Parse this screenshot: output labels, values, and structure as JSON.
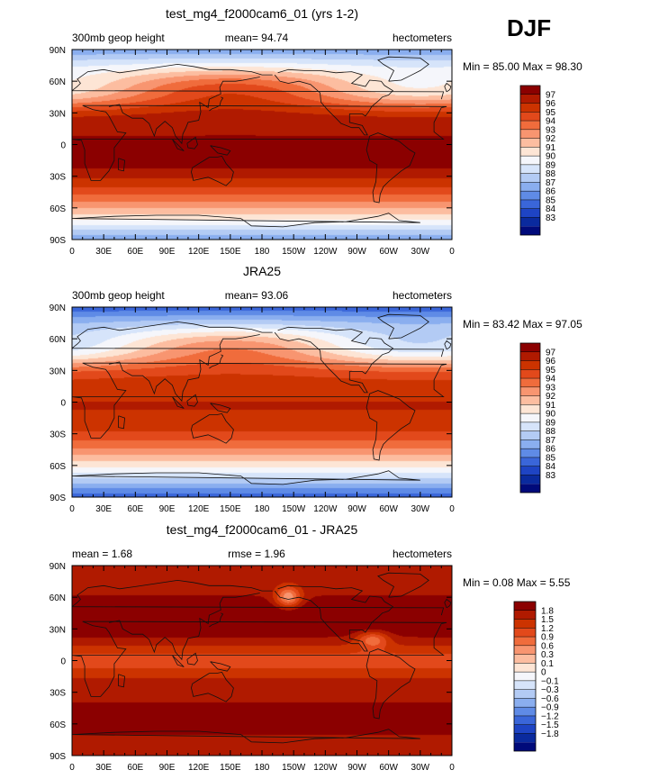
{
  "season": "DJF",
  "chart_data": [
    {
      "type": "heatmap",
      "title": "test_mg4_f2000cam6_01 (yrs 1-2)",
      "left_label": "300mb geop height",
      "center_label": "mean=   94.74",
      "right_label": "hectometers",
      "minmax_label": "Min =   85.00  Max =   98.30",
      "min": 85.0,
      "max": 98.3,
      "x_ticks": [
        "0",
        "30E",
        "60E",
        "90E",
        "120E",
        "150E",
        "180",
        "150W",
        "120W",
        "90W",
        "60W",
        "30W",
        "0"
      ],
      "y_ticks": [
        "90N",
        "60N",
        "30N",
        "0",
        "30S",
        "60S",
        "90S"
      ],
      "colorbar_levels": [
        "97",
        "96",
        "95",
        "94",
        "93",
        "92",
        "91",
        "90",
        "89",
        "88",
        "87",
        "86",
        "85",
        "84",
        "83"
      ],
      "colorbar_colors": [
        "#8b0000",
        "#b01a00",
        "#cc3300",
        "#e2491b",
        "#f06c3c",
        "#f89570",
        "#fcbda0",
        "#fde5d5",
        "#f5f6fb",
        "#d6e4fa",
        "#b3cbf4",
        "#8aaeef",
        "#5f8be6",
        "#3a66d9",
        "#1e44c4",
        "#0a2a9e",
        "#000a7a"
      ]
    },
    {
      "type": "heatmap",
      "title": "JRA25",
      "left_label": "300mb geop height",
      "center_label": "mean=   93.06",
      "right_label": "hectometers",
      "minmax_label": "Min =   83.42  Max =   97.05",
      "min": 83.42,
      "max": 97.05,
      "x_ticks": [
        "0",
        "30E",
        "60E",
        "90E",
        "120E",
        "150E",
        "180",
        "150W",
        "120W",
        "90W",
        "60W",
        "30W",
        "0"
      ],
      "y_ticks": [
        "90N",
        "60N",
        "30N",
        "0",
        "30S",
        "60S",
        "90S"
      ],
      "colorbar_levels": [
        "97",
        "96",
        "95",
        "94",
        "93",
        "92",
        "91",
        "90",
        "89",
        "88",
        "87",
        "86",
        "85",
        "84",
        "83"
      ],
      "colorbar_colors": [
        "#8b0000",
        "#b01a00",
        "#cc3300",
        "#e2491b",
        "#f06c3c",
        "#f89570",
        "#fcbda0",
        "#fde5d5",
        "#f5f6fb",
        "#d6e4fa",
        "#b3cbf4",
        "#8aaeef",
        "#5f8be6",
        "#3a66d9",
        "#1e44c4",
        "#0a2a9e",
        "#000a7a"
      ]
    },
    {
      "type": "heatmap",
      "title": "test_mg4_f2000cam6_01 - JRA25",
      "left_label": "mean =     1.68",
      "center_label": "rmse =     1.96",
      "right_label": "hectometers",
      "minmax_label": "Min =    0.08  Max =    5.55",
      "min": 0.08,
      "max": 5.55,
      "x_ticks": [
        "0",
        "30E",
        "60E",
        "90E",
        "120E",
        "150E",
        "180",
        "150W",
        "120W",
        "90W",
        "60W",
        "30W",
        "0"
      ],
      "y_ticks": [
        "90N",
        "60N",
        "30N",
        "0",
        "30S",
        "60S",
        "90S"
      ],
      "colorbar_levels": [
        "1.8",
        "1.5",
        "1.2",
        "0.9",
        "0.6",
        "0.3",
        "0.1",
        "0",
        "−0.1",
        "−0.3",
        "−0.6",
        "−0.9",
        "−1.2",
        "−1.5",
        "−1.8"
      ],
      "colorbar_colors": [
        "#8b0000",
        "#b01a00",
        "#cc3300",
        "#e2491b",
        "#f06c3c",
        "#f89570",
        "#fcbda0",
        "#fde5d5",
        "#f5f6fb",
        "#d6e4fa",
        "#b3cbf4",
        "#8aaeef",
        "#5f8be6",
        "#3a66d9",
        "#1e44c4",
        "#0a2a9e",
        "#000a7a"
      ]
    }
  ]
}
